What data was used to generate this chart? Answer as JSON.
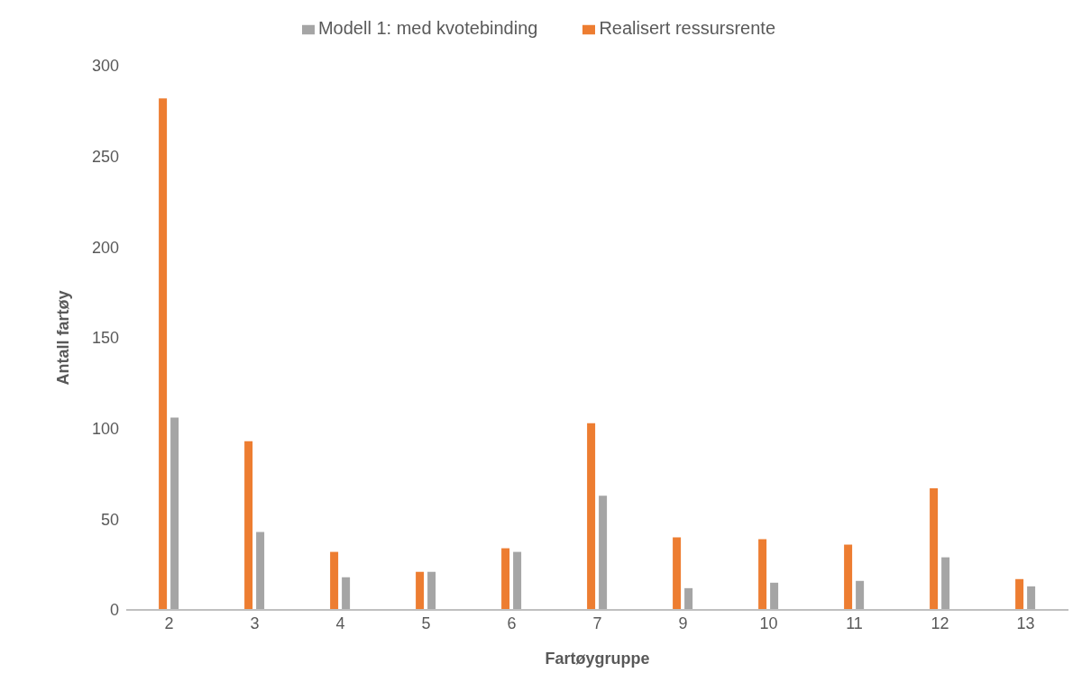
{
  "chart_data": {
    "type": "bar",
    "xlabel": "Fartøygruppe",
    "ylabel": "Antall fartøy",
    "categories": [
      "2",
      "3",
      "4",
      "5",
      "6",
      "7",
      "9",
      "10",
      "11",
      "12",
      "13"
    ],
    "series": [
      {
        "name": "Realisert ressursrente",
        "color": "#ed7d31",
        "values": [
          282,
          93,
          32,
          21,
          34,
          103,
          40,
          39,
          36,
          67,
          17
        ]
      },
      {
        "name": "Modell 1: med kvotebinding",
        "color": "#a5a5a5",
        "values": [
          106,
          43,
          18,
          21,
          32,
          63,
          12,
          15,
          16,
          29,
          13
        ]
      }
    ],
    "ylim": [
      0,
      300
    ],
    "yticks": [
      0,
      50,
      100,
      150,
      200,
      250,
      300
    ],
    "grid": false,
    "legend": "top"
  }
}
